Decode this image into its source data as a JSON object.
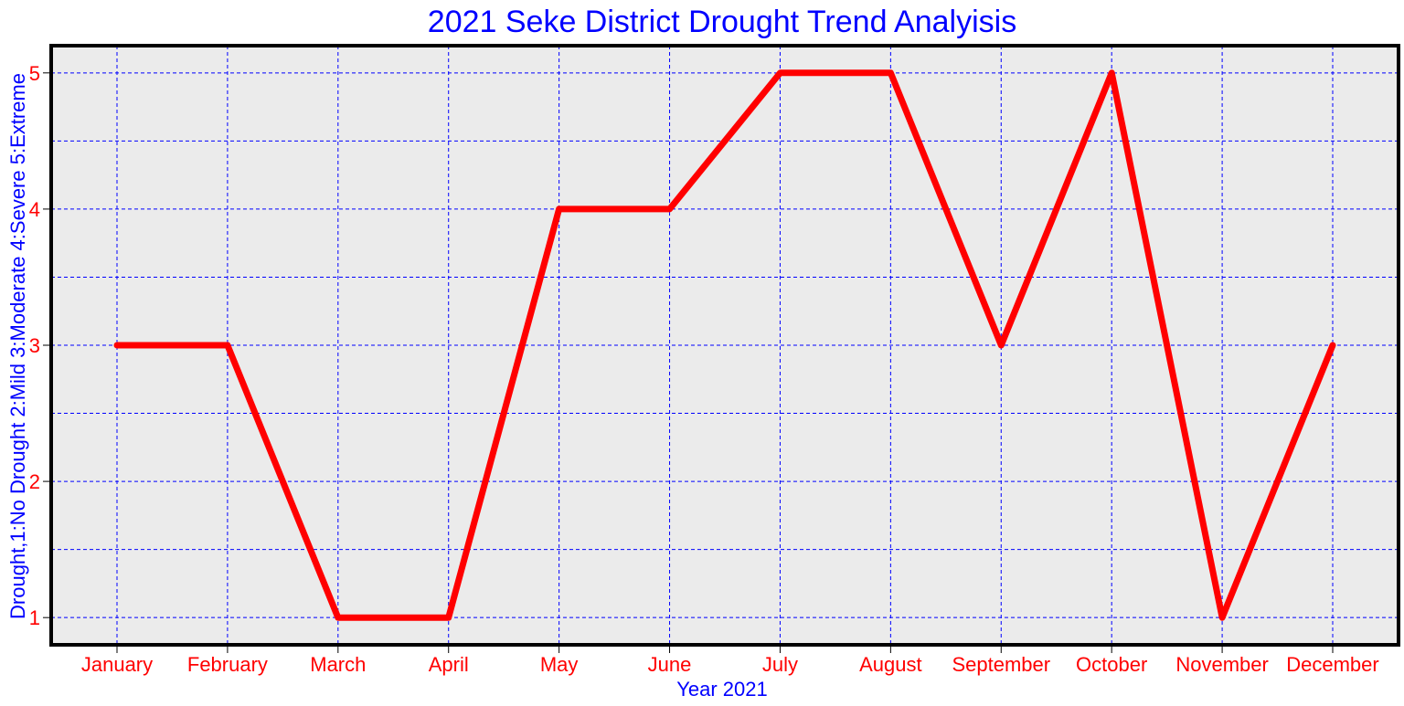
{
  "chart_data": {
    "type": "line",
    "title": "2021 Seke District Drought Trend Analyisis",
    "xlabel": "Year 2021",
    "ylabel": "Drought,1:No Drought 2:Mild 3:Moderate 4:Severe 5:Extreme",
    "categories": [
      "January",
      "February",
      "March",
      "April",
      "May",
      "June",
      "July",
      "August",
      "September",
      "October",
      "November",
      "December"
    ],
    "series": [
      {
        "values": [
          3,
          3,
          1,
          1,
          4,
          4,
          5,
          5,
          3,
          5,
          1,
          3
        ]
      }
    ],
    "ylim": [
      0.8,
      5.2
    ],
    "yticks": [
      1,
      2,
      3,
      4,
      5
    ],
    "grid": true,
    "colors": {
      "title": "#0000ff",
      "axis_label": "#0000ff",
      "tick_label": "#ff0000",
      "line": "#ff0000",
      "grid": "#0000ff",
      "plot_background": "#ebebeb",
      "frame": "#000000"
    }
  }
}
